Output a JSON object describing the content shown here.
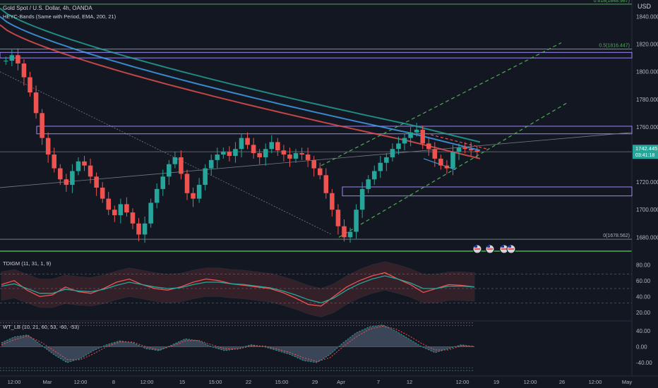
{
  "header": {
    "title": "Gold Spot / U.S. Dollar, 4h, OANDA",
    "indicator": "HEYC-Bands (Same with Period, EMA, 200, 21)",
    "currency": "USD",
    "countdown": "03:41:18"
  },
  "colors": {
    "background": "#131722",
    "bull": "#26a69a",
    "bear": "#ef5350",
    "fib_line": "#4caf50",
    "box_outline": "#9c87f5",
    "channel": "#4caf50",
    "price_tag": "#26a69a"
  },
  "icons": [
    "us-flag-event-icon",
    "us-flag-event-icon",
    "us-flag-event-icon",
    "us-flag-event-icon"
  ],
  "chart_data": [
    {
      "type": "candlestick",
      "title": "Gold Spot / U.S. Dollar, 4h, OANDA",
      "x_ticks": [
        "12:00",
        "Mar",
        "12:00",
        "8",
        "12:00",
        "15",
        "15:00",
        "22",
        "15:00",
        "29",
        "Apr",
        "7",
        "12",
        "12:00",
        "19",
        "12:00",
        "26",
        "12:00",
        "May"
      ],
      "y_ticks": [
        1680,
        1700,
        1720,
        1740,
        1760,
        1780,
        1800,
        1820,
        1840
      ],
      "ylim": [
        1672,
        1852
      ],
      "last_price": 1742.445,
      "fib_levels": [
        {
          "label": "0.618(1848.987)",
          "value": 1848.987
        },
        {
          "label": "0.5(1816.447)",
          "value": 1816.447
        },
        {
          "label": "0(1678.562)",
          "value": 1678.562
        }
      ],
      "close_series": [
        1808,
        1812,
        1806,
        1796,
        1785,
        1770,
        1752,
        1740,
        1730,
        1722,
        1718,
        1728,
        1735,
        1732,
        1724,
        1716,
        1708,
        1700,
        1696,
        1704,
        1698,
        1690,
        1682,
        1690,
        1705,
        1715,
        1724,
        1733,
        1738,
        1726,
        1712,
        1708,
        1718,
        1730,
        1736,
        1740,
        1742,
        1739,
        1744,
        1752,
        1747,
        1741,
        1738,
        1744,
        1749,
        1743,
        1740,
        1737,
        1741,
        1740,
        1736,
        1730,
        1725,
        1712,
        1700,
        1688,
        1680,
        1684,
        1700,
        1715,
        1722,
        1728,
        1734,
        1738,
        1744,
        1748,
        1752,
        1756,
        1758,
        1748,
        1744,
        1737,
        1732,
        1730,
        1742,
        1745,
        1744,
        1743,
        1742
      ]
    },
    {
      "type": "line",
      "title": "TDIGM (11, 31, 1, 9)",
      "y_ticks": [
        20,
        40,
        60,
        80
      ],
      "ylim": [
        10,
        90
      ],
      "guide_levels": [
        32,
        50,
        68
      ],
      "series": [
        {
          "name": "RSI",
          "values": [
            55,
            60,
            48,
            40,
            42,
            52,
            46,
            44,
            50,
            58,
            62,
            55,
            50,
            48,
            52,
            58,
            62,
            60,
            56,
            54,
            52,
            50,
            45,
            38,
            30,
            28,
            40,
            52,
            60,
            66,
            70,
            62,
            55,
            45,
            50,
            55,
            54,
            52
          ]
        },
        {
          "name": "Signal",
          "values": [
            53,
            56,
            50,
            44,
            44,
            49,
            47,
            46,
            49,
            54,
            58,
            55,
            52,
            50,
            51,
            55,
            58,
            58,
            56,
            55,
            53,
            51,
            47,
            42,
            36,
            32,
            38,
            48,
            56,
            62,
            66,
            62,
            57,
            50,
            50,
            53,
            53,
            52
          ]
        }
      ]
    },
    {
      "type": "area",
      "title": "WT_LB (10, 21, 60, 53, -60, -53)",
      "y_ticks": [
        -40,
        0,
        40
      ],
      "ylim": [
        -65,
        65
      ],
      "guide_levels": [
        60,
        53,
        -53,
        -60
      ],
      "series": [
        {
          "name": "WT1",
          "values": [
            10,
            25,
            30,
            5,
            -20,
            -40,
            -30,
            -10,
            5,
            15,
            10,
            -5,
            -10,
            5,
            20,
            15,
            0,
            -10,
            -5,
            5,
            0,
            -10,
            -20,
            -35,
            -40,
            -20,
            10,
            35,
            50,
            55,
            40,
            20,
            0,
            -15,
            -5,
            5,
            0
          ]
        },
        {
          "name": "WT2",
          "values": [
            5,
            18,
            27,
            12,
            -10,
            -32,
            -33,
            -18,
            0,
            12,
            12,
            0,
            -8,
            2,
            15,
            16,
            5,
            -5,
            -6,
            2,
            2,
            -6,
            -15,
            -28,
            -37,
            -28,
            0,
            25,
            44,
            52,
            45,
            28,
            8,
            -8,
            -8,
            2,
            1
          ]
        }
      ]
    }
  ]
}
